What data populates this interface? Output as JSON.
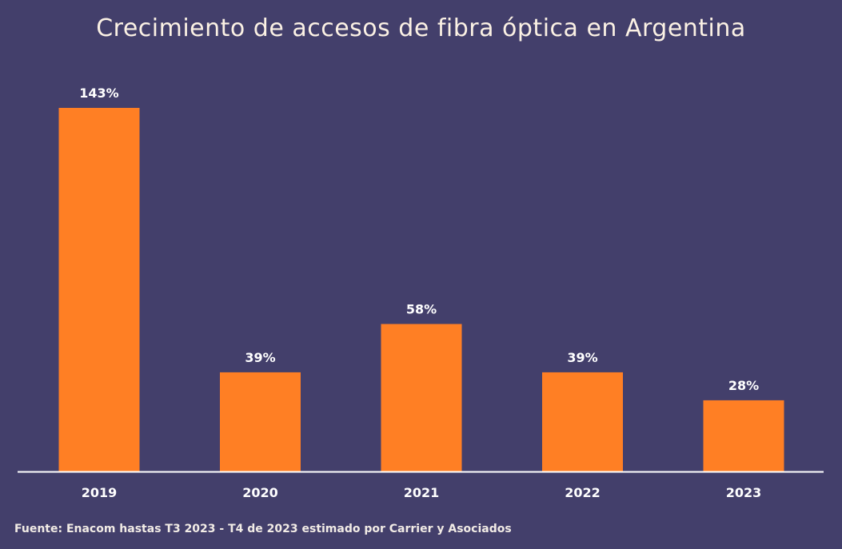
{
  "title": "Crecimiento de accesos de fibra óptica en Argentina",
  "source": "Fuente: Enacom hastas T3 2023 - T4 de 2023 estimado por Carrier y Asociados",
  "colors": {
    "background": "#433f6b",
    "bar": "#ff7f24",
    "axis": "#ffffff",
    "text": "#ffffff"
  },
  "chart_data": {
    "type": "bar",
    "title": "Crecimiento de accesos de fibra óptica en Argentina",
    "xlabel": "",
    "ylabel": "",
    "categories": [
      "2019",
      "2020",
      "2021",
      "2022",
      "2023"
    ],
    "values": [
      143,
      39,
      58,
      39,
      28
    ],
    "data_labels": [
      "143%",
      "39%",
      "58%",
      "39%",
      "28%"
    ],
    "unit": "%",
    "ylim": [
      0,
      143
    ],
    "grid": false,
    "legend": "none"
  }
}
